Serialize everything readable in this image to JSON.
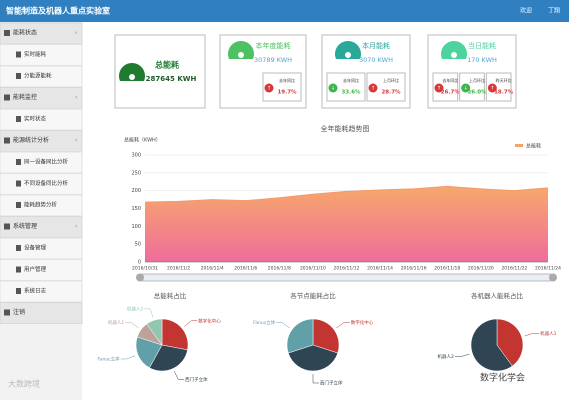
{
  "header": {
    "title": "智能制造及机器人重点实验室",
    "user": "欢迎",
    "name": "丁翔"
  },
  "sidebar": [
    {
      "title": "能耗状态",
      "items": [
        "实时能耗",
        "分能源能耗"
      ]
    },
    {
      "title": "能耗监控",
      "items": [
        "实时状态"
      ]
    },
    {
      "title": "能源统计分析",
      "items": [
        "同一设备同比分析",
        "不同设备同比分析",
        "能耗趋势分析"
      ]
    },
    {
      "title": "系统管理",
      "items": [
        "设备管理",
        "用户管理",
        "系统日志"
      ]
    },
    {
      "title": "注销",
      "items": []
    }
  ],
  "cards": [
    {
      "title": "总能耗",
      "value": "287645 KWH",
      "stats": []
    },
    {
      "title": "本年度能耗",
      "value": "30789 KWH",
      "stats": [
        {
          "label": "去年同比",
          "value": "19.7%",
          "dir": "up"
        }
      ]
    },
    {
      "title": "本月能耗",
      "value": "3070 KWH",
      "stats": [
        {
          "label": "去年同比",
          "value": "33.6%",
          "dir": "down"
        },
        {
          "label": "上月环比",
          "value": "28.7%",
          "dir": "up"
        }
      ]
    },
    {
      "title": "当日能耗",
      "value": "170 KWH",
      "stats": [
        {
          "label": "去年同比",
          "value": "26.7%",
          "dir": "up"
        },
        {
          "label": "上月环比",
          "value": "26.0%",
          "dir": "down"
        },
        {
          "label": "昨天环比",
          "value": "18.7%",
          "dir": "up"
        }
      ]
    }
  ],
  "chart_data": [
    {
      "type": "area",
      "title": "全年能耗趋势图",
      "y_label": "总能耗（KWH）",
      "legend": "总能耗",
      "categories": [
        "2016/10/31",
        "2016/11/2",
        "2016/11/4",
        "2016/11/6",
        "2016/11/8",
        "2016/11/10",
        "2016/11/12",
        "2016/11/14",
        "2016/11/16",
        "2016/11/18",
        "2016/11/20",
        "2016/11/22",
        "2016/11/24"
      ],
      "values": [
        168,
        170,
        175,
        172,
        180,
        190,
        198,
        202,
        205,
        212,
        205,
        200,
        208
      ],
      "ylim": [
        0,
        300
      ],
      "yticks": [
        0,
        50,
        100,
        150,
        200,
        250,
        300
      ],
      "grid": true
    },
    {
      "type": "pie",
      "title": "总能耗占比",
      "categories": [
        "数字化中心",
        "西门子立体",
        "Fanuc立体",
        "机器人1",
        "机器人2"
      ],
      "values": [
        28,
        30,
        22,
        10,
        10
      ],
      "colors": [
        "#c23531",
        "#2f4554",
        "#61a0a8",
        "#bda29a",
        "#91c7ae"
      ]
    },
    {
      "type": "pie",
      "title": "各节点能耗占比",
      "categories": [
        "数字化中心",
        "西门子立体",
        "Fanuc立体"
      ],
      "values": [
        30,
        40,
        30
      ],
      "colors": [
        "#c23531",
        "#2f4554",
        "#61a0a8"
      ]
    },
    {
      "type": "pie",
      "title": "各机器人能耗占比",
      "categories": [
        "机器人1",
        "机器人2"
      ],
      "values": [
        40,
        60
      ],
      "colors": [
        "#c23531",
        "#2f4554"
      ]
    }
  ],
  "watermarks": [
    "大数跨境",
    "数字化学会"
  ]
}
